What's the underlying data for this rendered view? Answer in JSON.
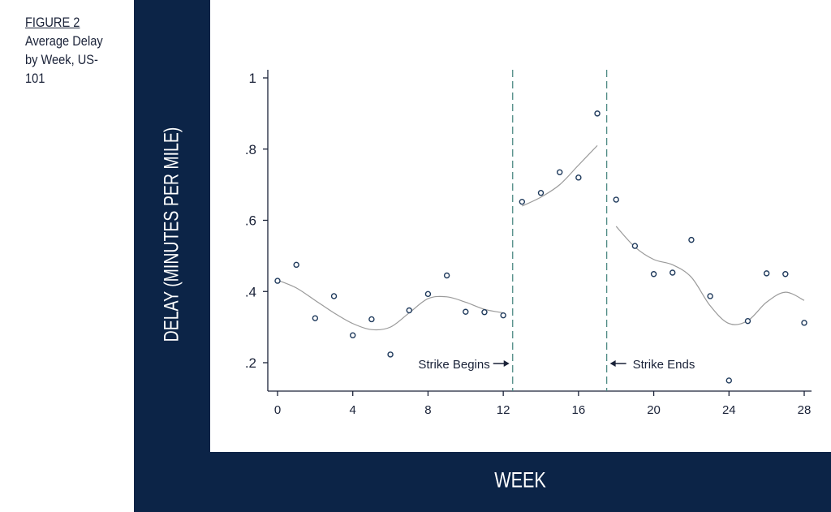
{
  "figure": {
    "number_label": "FIGURE 2",
    "description": "Average Delay by Week, US-101"
  },
  "chart_data": {
    "type": "scatter",
    "xlabel": "WEEK",
    "ylabel": "DELAY (MINUTES PER MILE)",
    "xlim": [
      0,
      28
    ],
    "ylim": [
      0.2,
      1.0
    ],
    "x_ticks": [
      0,
      4,
      8,
      12,
      16,
      20,
      24,
      28
    ],
    "x_tick_labels": [
      "0",
      "4",
      "8",
      "12",
      "16",
      "20",
      "24",
      "28"
    ],
    "y_ticks": [
      0.2,
      0.4,
      0.6,
      0.8,
      1.0
    ],
    "y_tick_labels": [
      ".2",
      ".4",
      ".6",
      ".8",
      "1"
    ],
    "grid": false,
    "legend": "none",
    "points": {
      "x": [
        0,
        1,
        2,
        3,
        4,
        5,
        6,
        7,
        8,
        9,
        10,
        11,
        12,
        13,
        14,
        15,
        16,
        17,
        18,
        19,
        20,
        21,
        22,
        23,
        24,
        25,
        26,
        27,
        28
      ],
      "y": [
        0.43,
        0.475,
        0.325,
        0.387,
        0.277,
        0.322,
        0.223,
        0.347,
        0.393,
        0.445,
        0.343,
        0.342,
        0.333,
        0.652,
        0.677,
        0.735,
        0.72,
        0.9,
        0.658,
        0.528,
        0.449,
        0.453,
        0.545,
        0.387,
        0.15,
        0.317,
        0.451,
        0.449,
        0.312
      ]
    },
    "fitted_curves": [
      {
        "x": [
          0,
          1,
          2,
          3,
          4,
          5,
          6,
          7,
          8,
          9,
          10,
          11,
          12
        ],
        "y": [
          0.432,
          0.41,
          0.375,
          0.34,
          0.31,
          0.293,
          0.3,
          0.34,
          0.38,
          0.385,
          0.37,
          0.35,
          0.34
        ]
      },
      {
        "x": [
          13,
          14,
          15,
          16,
          17
        ],
        "y": [
          0.64,
          0.665,
          0.7,
          0.755,
          0.81
        ]
      },
      {
        "x": [
          18,
          19,
          20,
          21,
          22,
          23,
          24,
          25,
          26,
          27,
          28
        ],
        "y": [
          0.583,
          0.525,
          0.49,
          0.475,
          0.44,
          0.36,
          0.31,
          0.318,
          0.37,
          0.398,
          0.375
        ]
      }
    ],
    "event_lines": [
      {
        "x": 12.5,
        "label": "Strike Begins",
        "arrow": "right",
        "label_side": "left"
      },
      {
        "x": 17.5,
        "label": "Strike Ends",
        "arrow": "left",
        "label_side": "right"
      }
    ],
    "colors": {
      "frame": "#0c2447",
      "markers": "#1f3a5c",
      "curve": "#9a9a9a",
      "event_line": "#4e8a84",
      "text": "#1a2238"
    }
  }
}
